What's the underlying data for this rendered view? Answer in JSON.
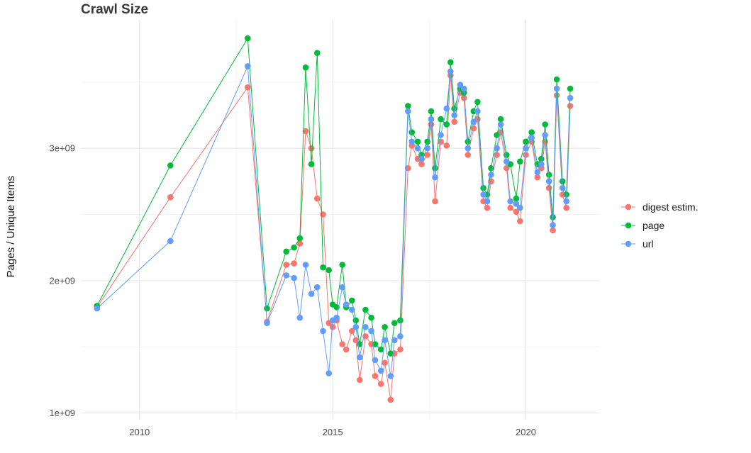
{
  "chart_data": {
    "type": "scatter-line",
    "title": "Crawl Size",
    "ylabel": "Pages / Unique Items",
    "xlabel": "",
    "grid": true,
    "legend_position": "right",
    "y_value_scale": 1000000000,
    "y_unit": "pages / unique items (×1e9)",
    "xlim": [
      2008.5,
      2021.9
    ],
    "ylim": [
      0.95,
      3.97
    ],
    "x_ticks": [
      {
        "value": 2010,
        "label": "2010"
      },
      {
        "value": 2015,
        "label": "2015"
      },
      {
        "value": 2020,
        "label": "2020"
      }
    ],
    "x_minor_ticks": [
      2012.5,
      2017.5
    ],
    "y_ticks": [
      {
        "value": 1,
        "label": "1e+09"
      },
      {
        "value": 2,
        "label": "2e+09"
      },
      {
        "value": 3,
        "label": "3e+09"
      }
    ],
    "y_minor_ticks": [
      1.5,
      2.5,
      3.5
    ],
    "x": [
      2008.9,
      2010.8,
      2012.8,
      2013.3,
      2013.8,
      2014.0,
      2014.15,
      2014.3,
      2014.45,
      2014.6,
      2014.75,
      2014.9,
      2015.0,
      2015.1,
      2015.25,
      2015.35,
      2015.5,
      2015.6,
      2015.7,
      2015.85,
      2016.0,
      2016.1,
      2016.25,
      2016.35,
      2016.5,
      2016.6,
      2016.75,
      2016.95,
      2017.05,
      2017.2,
      2017.3,
      2017.45,
      2017.55,
      2017.65,
      2017.8,
      2017.95,
      2018.05,
      2018.15,
      2018.3,
      2018.4,
      2018.5,
      2018.65,
      2018.75,
      2018.9,
      2019.0,
      2019.1,
      2019.25,
      2019.35,
      2019.5,
      2019.6,
      2019.75,
      2019.85,
      2020.0,
      2020.15,
      2020.3,
      2020.4,
      2020.5,
      2020.6,
      2020.7,
      2020.8,
      2020.95,
      2021.05,
      2021.15
    ],
    "series": [
      {
        "name": "digest estim.",
        "color": "#F8766D",
        "values": [
          1.8,
          2.63,
          3.46,
          1.69,
          2.12,
          2.13,
          2.28,
          3.13,
          3.0,
          2.62,
          2.5,
          1.68,
          1.65,
          1.7,
          1.52,
          1.48,
          1.62,
          1.55,
          1.25,
          1.58,
          1.52,
          1.28,
          1.22,
          1.38,
          1.1,
          1.45,
          1.48,
          2.85,
          3.02,
          2.92,
          2.88,
          2.95,
          3.18,
          2.6,
          3.05,
          3.02,
          3.55,
          3.2,
          3.42,
          3.38,
          2.95,
          3.15,
          3.22,
          2.6,
          2.55,
          2.75,
          2.95,
          3.12,
          2.85,
          2.55,
          2.52,
          2.45,
          2.95,
          3.05,
          2.78,
          2.85,
          3.05,
          2.7,
          2.38,
          3.4,
          2.65,
          2.55,
          3.32
        ]
      },
      {
        "name": "page",
        "color": "#00BA38",
        "values": [
          1.81,
          2.87,
          3.83,
          1.79,
          2.22,
          2.25,
          2.32,
          3.61,
          2.88,
          3.72,
          2.1,
          2.08,
          1.82,
          1.8,
          2.12,
          1.8,
          1.85,
          1.7,
          1.52,
          1.78,
          1.72,
          1.52,
          1.48,
          1.65,
          1.45,
          1.68,
          1.7,
          3.32,
          3.12,
          3.05,
          2.95,
          3.05,
          3.28,
          2.85,
          3.22,
          3.18,
          3.65,
          3.3,
          3.45,
          3.42,
          3.05,
          3.28,
          3.35,
          2.7,
          2.65,
          2.85,
          3.1,
          3.22,
          2.95,
          2.88,
          2.62,
          2.9,
          3.05,
          3.12,
          2.88,
          2.92,
          3.18,
          2.8,
          2.48,
          3.52,
          2.75,
          2.65,
          3.45
        ]
      },
      {
        "name": "url",
        "color": "#619CFF",
        "values": [
          1.79,
          2.3,
          3.62,
          1.68,
          2.04,
          2.02,
          1.72,
          2.12,
          1.9,
          1.95,
          1.62,
          1.3,
          1.7,
          1.72,
          1.95,
          1.82,
          1.78,
          1.65,
          1.42,
          1.65,
          1.62,
          1.4,
          1.32,
          1.55,
          1.28,
          1.55,
          1.58,
          3.28,
          3.05,
          3.0,
          2.92,
          3.0,
          3.22,
          2.78,
          3.1,
          3.3,
          3.58,
          3.25,
          3.48,
          3.45,
          3.0,
          3.2,
          3.28,
          2.65,
          2.6,
          2.8,
          3.0,
          3.18,
          2.9,
          2.6,
          2.58,
          2.55,
          3.0,
          3.08,
          2.82,
          2.88,
          3.1,
          2.75,
          2.42,
          3.45,
          2.7,
          2.6,
          3.38
        ]
      }
    ],
    "style": {
      "grid_major_color": "#e4e4e4",
      "grid_minor_color": "#f3f3f3",
      "point_radius": 4.3,
      "line_width": 1
    }
  }
}
